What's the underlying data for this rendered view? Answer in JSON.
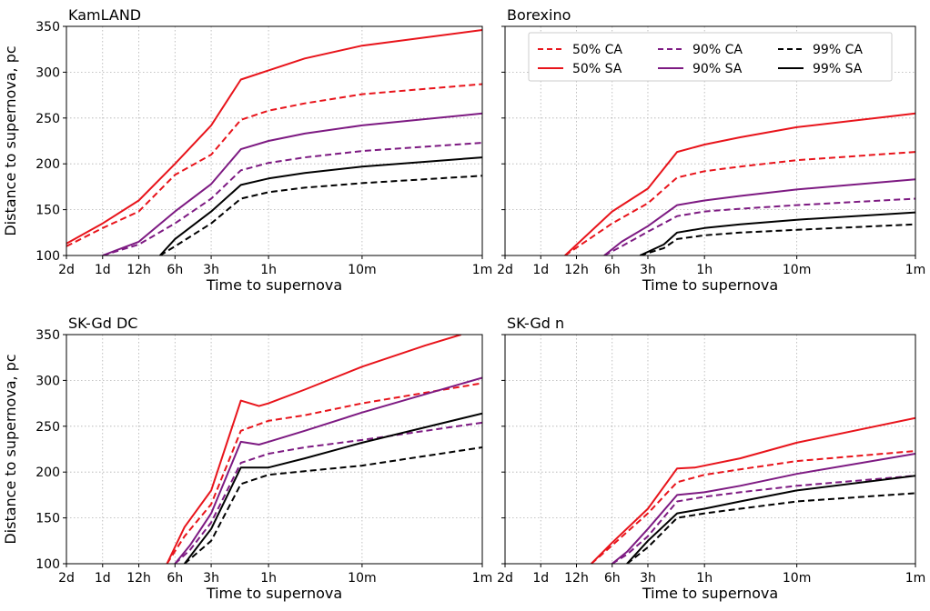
{
  "figure": {
    "ylabel": "Distance to supernova, pc",
    "xlabel": "Time to supernova"
  },
  "legend": {
    "entries": [
      {
        "label": "50% CA",
        "color": "#e8141b",
        "style": "dashed"
      },
      {
        "label": "90% CA",
        "color": "#7d1a82",
        "style": "dashed"
      },
      {
        "label": "99% CA",
        "color": "#000000",
        "style": "dashed"
      },
      {
        "label": "50% SA",
        "color": "#e8141b",
        "style": "solid"
      },
      {
        "label": "90% SA",
        "color": "#7d1a82",
        "style": "solid"
      },
      {
        "label": "99% SA",
        "color": "#000000",
        "style": "solid"
      }
    ]
  },
  "chart_data": [
    {
      "type": "line",
      "title": "KamLAND",
      "xlabel": "Time to supernova",
      "ylabel": "Distance to supernova, pc",
      "x_scale": "log, reversed (time before supernova)",
      "x_ticks": [
        "2d",
        "1d",
        "12h",
        "6h",
        "3h",
        "1h",
        "10m",
        "1m"
      ],
      "y_ticks": [
        100,
        150,
        200,
        250,
        300,
        350
      ],
      "ylim": [
        100,
        350
      ],
      "grid": true,
      "series": [
        {
          "name": "50% CA",
          "color": "#e8141b",
          "style": "dashed",
          "points": [
            [
              "2d",
              110
            ],
            [
              "1d",
              130
            ],
            [
              "12h",
              148
            ],
            [
              "6h",
              188
            ],
            [
              "3h",
              210
            ],
            [
              "1.7h",
              248
            ],
            [
              "1h",
              258
            ],
            [
              "30m",
              266
            ],
            [
              "10m",
              276
            ],
            [
              "1m",
              287
            ]
          ]
        },
        {
          "name": "50% SA",
          "color": "#e8141b",
          "style": "solid",
          "points": [
            [
              "2d",
              113
            ],
            [
              "1d",
              135
            ],
            [
              "12h",
              160
            ],
            [
              "6h",
              200
            ],
            [
              "3h",
              242
            ],
            [
              "1.7h",
              292
            ],
            [
              "1h",
              302
            ],
            [
              "30m",
              315
            ],
            [
              "10m",
              329
            ],
            [
              "1m",
              346
            ]
          ]
        },
        {
          "name": "90% CA",
          "color": "#7d1a82",
          "style": "dashed",
          "points": [
            [
              "1d",
              100
            ],
            [
              "12h",
              112
            ],
            [
              "6h",
              135
            ],
            [
              "3h",
              162
            ],
            [
              "1.7h",
              193
            ],
            [
              "1h",
              201
            ],
            [
              "30m",
              207
            ],
            [
              "10m",
              214
            ],
            [
              "1m",
              223
            ]
          ]
        },
        {
          "name": "90% SA",
          "color": "#7d1a82",
          "style": "solid",
          "points": [
            [
              "1d",
              100
            ],
            [
              "12h",
              115
            ],
            [
              "6h",
              148
            ],
            [
              "3h",
              178
            ],
            [
              "1.7h",
              216
            ],
            [
              "1h",
              225
            ],
            [
              "30m",
              233
            ],
            [
              "10m",
              242
            ],
            [
              "1m",
              255
            ]
          ]
        },
        {
          "name": "99% CA",
          "color": "#000000",
          "style": "dashed",
          "points": [
            [
              "8h",
              100
            ],
            [
              "6h",
              110
            ],
            [
              "3h",
              135
            ],
            [
              "1.7h",
              162
            ],
            [
              "1h",
              169
            ],
            [
              "30m",
              174
            ],
            [
              "10m",
              179
            ],
            [
              "1m",
              187
            ]
          ]
        },
        {
          "name": "99% SA",
          "color": "#000000",
          "style": "solid",
          "points": [
            [
              "8h",
              100
            ],
            [
              "6h",
              118
            ],
            [
              "3h",
              148
            ],
            [
              "1.7h",
              177
            ],
            [
              "1h",
              184
            ],
            [
              "30m",
              190
            ],
            [
              "10m",
              197
            ],
            [
              "1m",
              207
            ]
          ]
        }
      ]
    },
    {
      "type": "line",
      "title": "Borexino",
      "xlabel": "Time to supernova",
      "x_scale": "log, reversed (time before supernova)",
      "x_ticks": [
        "2d",
        "1d",
        "12h",
        "6h",
        "3h",
        "1h",
        "10m",
        "1m"
      ],
      "ylim": [
        100,
        350
      ],
      "grid": true,
      "legend_position": "top-right",
      "series": [
        {
          "name": "50% CA",
          "color": "#e8141b",
          "style": "dashed",
          "points": [
            [
              "15h",
              100
            ],
            [
              "6h",
              135
            ],
            [
              "3h",
              157
            ],
            [
              "1.7h",
              185
            ],
            [
              "1h",
              192
            ],
            [
              "30m",
              197
            ],
            [
              "10m",
              204
            ],
            [
              "1m",
              213
            ]
          ]
        },
        {
          "name": "50% SA",
          "color": "#e8141b",
          "style": "solid",
          "points": [
            [
              "15h",
              100
            ],
            [
              "6h",
              148
            ],
            [
              "3h",
              173
            ],
            [
              "1.7h",
              213
            ],
            [
              "1h",
              221
            ],
            [
              "30m",
              229
            ],
            [
              "10m",
              240
            ],
            [
              "1m",
              255
            ]
          ]
        },
        {
          "name": "90% CA",
          "color": "#7d1a82",
          "style": "dashed",
          "points": [
            [
              "7h",
              100
            ],
            [
              "5h",
              110
            ],
            [
              "3h",
              126
            ],
            [
              "1.7h",
              143
            ],
            [
              "1h",
              148
            ],
            [
              "30m",
              151
            ],
            [
              "10m",
              155
            ],
            [
              "1m",
              162
            ]
          ]
        },
        {
          "name": "90% SA",
          "color": "#7d1a82",
          "style": "solid",
          "points": [
            [
              "7h",
              100
            ],
            [
              "5h",
              115
            ],
            [
              "3h",
              132
            ],
            [
              "1.7h",
              155
            ],
            [
              "1h",
              160
            ],
            [
              "30m",
              165
            ],
            [
              "10m",
              172
            ],
            [
              "1m",
              183
            ]
          ]
        },
        {
          "name": "99% CA",
          "color": "#000000",
          "style": "dashed",
          "points": [
            [
              "3.5h",
              100
            ],
            [
              "2.2h",
              108
            ],
            [
              "1.7h",
              118
            ],
            [
              "1h",
              122
            ],
            [
              "30m",
              125
            ],
            [
              "10m",
              128
            ],
            [
              "1m",
              134
            ]
          ]
        },
        {
          "name": "99% SA",
          "color": "#000000",
          "style": "solid",
          "points": [
            [
              "3.5h",
              100
            ],
            [
              "2.2h",
              112
            ],
            [
              "1.7h",
              125
            ],
            [
              "1h",
              130
            ],
            [
              "30m",
              134
            ],
            [
              "10m",
              139
            ],
            [
              "1m",
              147
            ]
          ]
        }
      ]
    },
    {
      "type": "line",
      "title": "SK-Gd DC",
      "xlabel": "Time to supernova",
      "ylabel": "Distance to supernova, pc",
      "x_scale": "log, reversed (time before supernova)",
      "x_ticks": [
        "2d",
        "1d",
        "12h",
        "6h",
        "3h",
        "1h",
        "10m",
        "1m"
      ],
      "y_ticks": [
        100,
        150,
        200,
        250,
        300,
        350
      ],
      "ylim": [
        100,
        350
      ],
      "grid": true,
      "series": [
        {
          "name": "50% CA",
          "color": "#e8141b",
          "style": "dashed",
          "points": [
            [
              "7h",
              100
            ],
            [
              "5h",
              130
            ],
            [
              "3h",
              165
            ],
            [
              "1.7h",
              245
            ],
            [
              "1h",
              256
            ],
            [
              "30m",
              262
            ],
            [
              "10m",
              275
            ],
            [
              "1m",
              297
            ]
          ]
        },
        {
          "name": "50% SA",
          "color": "#e8141b",
          "style": "solid",
          "points": [
            [
              "7h",
              100
            ],
            [
              "5h",
              140
            ],
            [
              "3h",
              180
            ],
            [
              "1.7h",
              278
            ],
            [
              "1.2h",
              272
            ],
            [
              "1h",
              275
            ],
            [
              "30m",
              290
            ],
            [
              "10m",
              315
            ],
            [
              "3m",
              338
            ],
            [
              "1.5m",
              350
            ]
          ]
        },
        {
          "name": "90% CA",
          "color": "#7d1a82",
          "style": "dashed",
          "points": [
            [
              "6h",
              100
            ],
            [
              "4.5h",
              115
            ],
            [
              "3h",
              145
            ],
            [
              "1.7h",
              210
            ],
            [
              "1h",
              220
            ],
            [
              "30m",
              227
            ],
            [
              "10m",
              235
            ],
            [
              "1m",
              254
            ]
          ]
        },
        {
          "name": "90% SA",
          "color": "#7d1a82",
          "style": "solid",
          "points": [
            [
              "6h",
              100
            ],
            [
              "4.5h",
              120
            ],
            [
              "3h",
              155
            ],
            [
              "1.7h",
              233
            ],
            [
              "1.2h",
              230
            ],
            [
              "1h",
              233
            ],
            [
              "30m",
              245
            ],
            [
              "10m",
              265
            ],
            [
              "1m",
              303
            ]
          ]
        },
        {
          "name": "99% CA",
          "color": "#000000",
          "style": "dashed",
          "points": [
            [
              "5h",
              100
            ],
            [
              "3h",
              125
            ],
            [
              "1.7h",
              187
            ],
            [
              "1h",
              197
            ],
            [
              "30m",
              201
            ],
            [
              "10m",
              207
            ],
            [
              "1m",
              227
            ]
          ]
        },
        {
          "name": "99% SA",
          "color": "#000000",
          "style": "solid",
          "points": [
            [
              "5h",
              100
            ],
            [
              "3h",
              138
            ],
            [
              "1.7h",
              205
            ],
            [
              "1h",
              205
            ],
            [
              "30m",
              215
            ],
            [
              "10m",
              232
            ],
            [
              "1m",
              264
            ]
          ]
        }
      ]
    },
    {
      "type": "line",
      "title": "SK-Gd n",
      "xlabel": "Time to supernova",
      "x_scale": "log, reversed (time before supernova)",
      "x_ticks": [
        "2d",
        "1d",
        "12h",
        "6h",
        "3h",
        "1h",
        "10m",
        "1m"
      ],
      "ylim": [
        100,
        350
      ],
      "grid": true,
      "series": [
        {
          "name": "50% CA",
          "color": "#e8141b",
          "style": "dashed",
          "points": [
            [
              "9h",
              100
            ],
            [
              "6h",
              120
            ],
            [
              "3h",
              155
            ],
            [
              "1.7h",
              189
            ],
            [
              "1h",
              197
            ],
            [
              "30m",
              203
            ],
            [
              "10m",
              212
            ],
            [
              "1m",
              223
            ]
          ]
        },
        {
          "name": "50% SA",
          "color": "#e8141b",
          "style": "solid",
          "points": [
            [
              "9h",
              100
            ],
            [
              "6h",
              123
            ],
            [
              "3h",
              160
            ],
            [
              "1.7h",
              204
            ],
            [
              "1.2h",
              205
            ],
            [
              "30m",
              215
            ],
            [
              "10m",
              232
            ],
            [
              "1m",
              259
            ]
          ]
        },
        {
          "name": "90% CA",
          "color": "#7d1a82",
          "style": "dashed",
          "points": [
            [
              "6h",
              100
            ],
            [
              "4.5h",
              110
            ],
            [
              "3h",
              130
            ],
            [
              "1.7h",
              168
            ],
            [
              "1h",
              173
            ],
            [
              "30m",
              178
            ],
            [
              "10m",
              185
            ],
            [
              "1m",
              196
            ]
          ]
        },
        {
          "name": "90% SA",
          "color": "#7d1a82",
          "style": "solid",
          "points": [
            [
              "6h",
              100
            ],
            [
              "4.5h",
              113
            ],
            [
              "3h",
              138
            ],
            [
              "1.7h",
              175
            ],
            [
              "1h",
              178
            ],
            [
              "30m",
              185
            ],
            [
              "10m",
              198
            ],
            [
              "1m",
              220
            ]
          ]
        },
        {
          "name": "99% CA",
          "color": "#000000",
          "style": "dashed",
          "points": [
            [
              "4.5h",
              100
            ],
            [
              "3h",
              118
            ],
            [
              "1.7h",
              150
            ],
            [
              "1h",
              155
            ],
            [
              "30m",
              160
            ],
            [
              "10m",
              168
            ],
            [
              "1m",
              177
            ]
          ]
        },
        {
          "name": "99% SA",
          "color": "#000000",
          "style": "solid",
          "points": [
            [
              "4.5h",
              100
            ],
            [
              "3h",
              125
            ],
            [
              "1.7h",
              155
            ],
            [
              "1h",
              160
            ],
            [
              "30m",
              168
            ],
            [
              "10m",
              180
            ],
            [
              "1m",
              196
            ]
          ]
        }
      ]
    }
  ]
}
